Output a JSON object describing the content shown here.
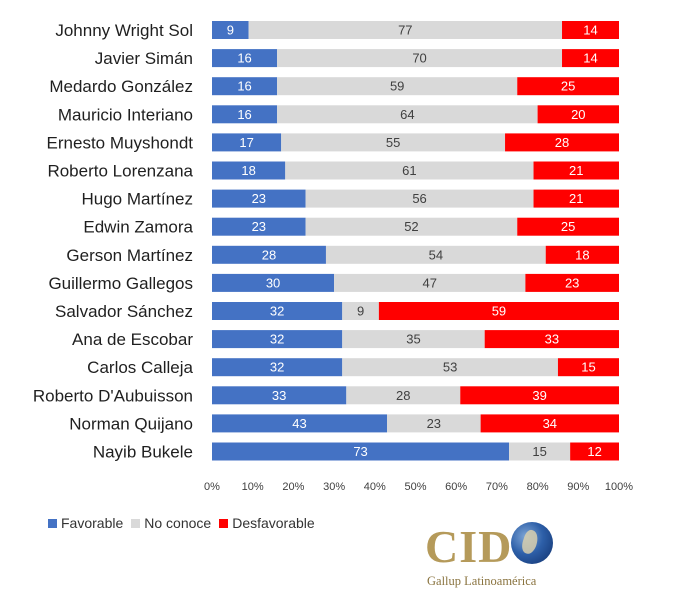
{
  "chart_data": {
    "type": "bar",
    "orientation": "horizontal",
    "stacked": true,
    "categories": [
      "Johnny Wright Sol",
      "Javier Simán",
      "Medardo González",
      "Mauricio Interiano",
      "Ernesto Muyshondt",
      "Roberto Lorenzana",
      "Hugo Martínez",
      "Edwin Zamora",
      "Gerson Martínez",
      "Guillermo Gallegos",
      "Salvador Sánchez",
      "Ana de Escobar",
      "Carlos Calleja",
      "Roberto D'Aubuisson",
      "Norman Quijano",
      "Nayib Bukele"
    ],
    "series": [
      {
        "name": "Favorable",
        "color": "#4472c4",
        "label_color": "#ffffff",
        "values": [
          9,
          16,
          16,
          16,
          17,
          18,
          23,
          23,
          28,
          30,
          32,
          32,
          32,
          33,
          43,
          73
        ]
      },
      {
        "name": "No conoce",
        "color": "#d9d9d9",
        "label_color": "#404040",
        "values": [
          77,
          70,
          59,
          64,
          55,
          61,
          56,
          52,
          54,
          47,
          9,
          35,
          53,
          28,
          23,
          15
        ]
      },
      {
        "name": "Desfavorable",
        "color": "#ff0000",
        "label_color": "#ffffff",
        "values": [
          14,
          14,
          25,
          20,
          28,
          21,
          21,
          25,
          18,
          23,
          59,
          33,
          15,
          39,
          34,
          12
        ]
      }
    ],
    "xlim": [
      0,
      100
    ],
    "x_ticks": [
      "0%",
      "10%",
      "20%",
      "30%",
      "40%",
      "50%",
      "60%",
      "70%",
      "80%",
      "90%",
      "100%"
    ],
    "grid": false,
    "legend_position": "bottom-left"
  },
  "logo": {
    "text": "CID",
    "subtitle": "Gallup Latinoamérica"
  }
}
